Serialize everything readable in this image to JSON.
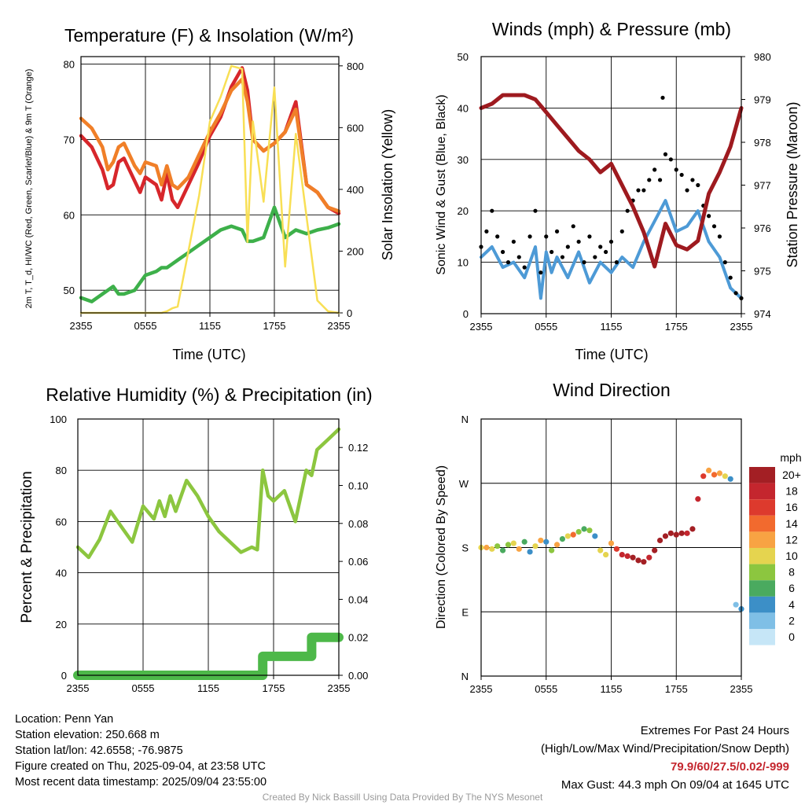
{
  "colors": {
    "red_temp": "#d7262b",
    "orange_temp": "#f07f28",
    "green_dew": "#3db04a",
    "yellow_solar": "#f8df55",
    "blue_wind": "#4d9ad6",
    "black_gust": "#000000",
    "maroon_pressure": "#9e1a1f",
    "green_rh": "#8cc63f",
    "green_precip": "#4db849"
  },
  "chart_data": [
    {
      "type": "line",
      "title": "Temperature (F) & Insolation (W/m²)",
      "xlabel": "Time (UTC)",
      "ylabel_left": "2m T, T_d, HI/WC (Red, Green, Scarlet/Blue) & 9m T (Orange)",
      "ylabel_right": "Solar Insolation (Yellow)",
      "x_ticks": [
        "2355",
        "0555",
        "1155",
        "1755",
        "2355"
      ],
      "ylim": [
        47,
        81
      ],
      "y_ticks": [
        50,
        60,
        70,
        80
      ],
      "ylim_right": [
        0,
        830
      ],
      "y_ticks_right": [
        0,
        200,
        400,
        600,
        800
      ],
      "grid": true,
      "x_hours": [
        0,
        1,
        2,
        2.5,
        3,
        3.5,
        4,
        5,
        5.5,
        6,
        7,
        7.5,
        8,
        8.5,
        9,
        10,
        11,
        12,
        13,
        14,
        15,
        15.5,
        16,
        17,
        18,
        19,
        20,
        21,
        22,
        23,
        24
      ],
      "series": [
        {
          "name": "2m T",
          "color_key": "red_temp",
          "values": [
            70.5,
            69,
            66,
            63.5,
            64,
            67,
            67.5,
            64.5,
            63,
            65,
            64,
            62,
            65.5,
            62,
            61,
            64,
            67,
            70.5,
            73,
            77,
            79.5,
            76.5,
            70,
            68.5,
            69.5,
            71,
            75,
            64,
            63,
            61,
            60.2
          ]
        },
        {
          "name": "9m T",
          "color_key": "orange_temp",
          "values": [
            72.8,
            71.5,
            69,
            66,
            67,
            69,
            69.5,
            66.5,
            65.5,
            67,
            66.5,
            64,
            66.5,
            64,
            63.5,
            65,
            68,
            71,
            73.5,
            76.5,
            78,
            75,
            70,
            68.5,
            69.5,
            71,
            74,
            64,
            63,
            61,
            60.5
          ]
        },
        {
          "name": "2m Td",
          "color_key": "green_dew",
          "values": [
            49,
            48.5,
            49.5,
            50,
            50.5,
            49.5,
            49.5,
            50,
            51,
            52,
            52.5,
            53,
            53,
            53.5,
            54,
            55,
            56,
            57,
            58,
            58.5,
            58,
            56.5,
            56.5,
            57,
            61,
            57,
            58,
            57.5,
            58,
            58.3,
            58.8
          ]
        },
        {
          "name": "Solar",
          "axis": "right",
          "color_key": "yellow_solar",
          "values": [
            0,
            0,
            0,
            0,
            0,
            0,
            0,
            0,
            0,
            0,
            0,
            0,
            5,
            15,
            20,
            200,
            380,
            620,
            700,
            800,
            790,
            230,
            620,
            360,
            730,
            150,
            580,
            310,
            40,
            5,
            0
          ]
        }
      ]
    },
    {
      "type": "line",
      "title": "Winds (mph) & Pressure (mb)",
      "xlabel": "Time (UTC)",
      "ylabel_left": "Sonic Wind & Gust (Blue, Black)",
      "ylabel_right": "Station Pressure (Maroon)",
      "x_ticks": [
        "2355",
        "0555",
        "1155",
        "1755",
        "2355"
      ],
      "ylim": [
        0,
        50
      ],
      "y_ticks": [
        0,
        10,
        20,
        30,
        40,
        50
      ],
      "ylim_right": [
        974,
        980
      ],
      "y_ticks_right": [
        974,
        975,
        976,
        977,
        978,
        979,
        980
      ],
      "grid": true,
      "series": [
        {
          "name": "Sonic Wind",
          "color_key": "blue_wind",
          "x_hours": [
            0,
            1,
            2,
            3,
            4,
            5,
            5.5,
            6,
            6.5,
            7,
            8,
            9,
            10,
            11,
            12,
            13,
            14,
            15,
            16,
            17,
            18,
            19,
            20,
            21,
            22,
            23,
            24
          ],
          "values": [
            11,
            13,
            9,
            10,
            7,
            13,
            3,
            12,
            8,
            11,
            7,
            12,
            6,
            10,
            8,
            11,
            9,
            14,
            18,
            22,
            16,
            17,
            20,
            14,
            11,
            5,
            3
          ]
        },
        {
          "name": "Gust",
          "color_key": "black_gust",
          "x_hours": [
            0,
            0.5,
            1,
            1.5,
            2,
            2.5,
            3,
            3.5,
            4,
            4.5,
            5,
            5.5,
            6,
            6.5,
            7,
            7.5,
            8,
            8.5,
            9,
            9.5,
            10,
            10.5,
            11,
            11.5,
            12,
            12.5,
            13,
            13.5,
            14,
            14.5,
            15,
            15.5,
            16,
            16.5,
            16.75,
            17,
            17.5,
            18,
            18.5,
            19,
            19.5,
            20,
            20.5,
            21,
            21.5,
            22,
            22.5,
            23,
            23.5,
            24
          ],
          "values": [
            13,
            16,
            20,
            15,
            12,
            10,
            14,
            11,
            9,
            15,
            20,
            8,
            15,
            12,
            16,
            11,
            13,
            17,
            14,
            10,
            15,
            11,
            13,
            12,
            14,
            10,
            16,
            20,
            22,
            24,
            24,
            26,
            28,
            26,
            42,
            31,
            30,
            28,
            27,
            24,
            26,
            25,
            21,
            19,
            17,
            15,
            10,
            7,
            4,
            3
          ]
        },
        {
          "name": "Station Pressure",
          "axis": "right",
          "color_key": "maroon_pressure",
          "x_hours": [
            0,
            1,
            2,
            3,
            4,
            5,
            6,
            7,
            8,
            9,
            10,
            11,
            12,
            13,
            14,
            15,
            16,
            17,
            18,
            19,
            20,
            21,
            22,
            23,
            24
          ],
          "values": [
            978.8,
            978.9,
            979.1,
            979.1,
            979.1,
            979.0,
            978.7,
            978.4,
            978.1,
            977.8,
            977.6,
            977.3,
            977.5,
            977.0,
            976.5,
            975.9,
            975.1,
            976.1,
            975.6,
            975.5,
            975.7,
            976.8,
            977.3,
            977.9,
            978.8
          ]
        }
      ]
    },
    {
      "type": "line",
      "title": "Relative Humidity (%) & Precipitation (in)",
      "xlabel": "",
      "ylabel_left": "Percent & Precipitation",
      "x_ticks": [
        "2355",
        "0555",
        "1155",
        "1755",
        "2355"
      ],
      "ylim": [
        0,
        100
      ],
      "y_ticks": [
        0,
        20,
        40,
        60,
        80,
        100
      ],
      "ylim_right": [
        0,
        0.135
      ],
      "y_ticks_right": [
        "0.00",
        "0.02",
        "0.04",
        "0.06",
        "0.08",
        "0.10",
        "0.12"
      ],
      "grid": true,
      "series": [
        {
          "name": "RH",
          "color_key": "green_rh",
          "x_hours": [
            0,
            1,
            2,
            3,
            4,
            5,
            6,
            7,
            7.5,
            8,
            8.5,
            9,
            10,
            11,
            12,
            13,
            14,
            15,
            16,
            16.5,
            17,
            17.5,
            18,
            19,
            20,
            21,
            21.5,
            22,
            23,
            24
          ],
          "values": [
            50,
            46,
            53,
            64,
            58,
            52,
            66,
            61,
            68,
            62,
            70,
            64,
            76,
            70,
            62,
            56,
            52,
            48,
            50,
            49,
            80,
            70,
            68,
            72,
            60,
            80,
            78,
            88,
            92,
            96
          ]
        },
        {
          "name": "Precipitation",
          "axis": "right",
          "color_key": "green_precip",
          "x_hours": [
            0,
            17,
            17,
            21.5,
            21.5,
            24
          ],
          "values": [
            0,
            0,
            0.01,
            0.01,
            0.02,
            0.02
          ]
        }
      ]
    },
    {
      "type": "scatter",
      "title": "Wind Direction",
      "ylabel_left": "Direction (Colored By Speed)",
      "x_ticks": [
        "2355",
        "0555",
        "1155",
        "1755",
        "2355"
      ],
      "y_ticks": [
        "N",
        "E",
        "S",
        "W",
        "N"
      ],
      "ylim": [
        0,
        360
      ],
      "grid": true,
      "legend_title": "mph",
      "legend_labels": [
        "20+",
        "18",
        "16",
        "14",
        "12",
        "10",
        "8",
        "6",
        "4",
        "2",
        "0"
      ],
      "legend_colors": [
        "#a31f24",
        "#c4262e",
        "#dd3a2d",
        "#f26a2e",
        "#f8a343",
        "#e5d44f",
        "#8cc63f",
        "#4aaa5f",
        "#3c8fc7",
        "#7fbfe6",
        "#c6e6f7"
      ],
      "x_hours": [
        0,
        0.5,
        1,
        1.5,
        2,
        2.5,
        3,
        3.5,
        4,
        4.5,
        5,
        5.5,
        6,
        6.5,
        7,
        7.5,
        8,
        8.5,
        9,
        9.5,
        10,
        10.5,
        11,
        11.5,
        12,
        12.5,
        13,
        13.5,
        14,
        14.5,
        15,
        15.5,
        16,
        16.5,
        17,
        17.5,
        18,
        18.5,
        19,
        19.5,
        20,
        20.5,
        21,
        21.5,
        22,
        22.5,
        23,
        23.5,
        24
      ],
      "directions": [
        180,
        180,
        178,
        182,
        176,
        184,
        186,
        178,
        188,
        174,
        182,
        190,
        188,
        176,
        184,
        192,
        196,
        198,
        202,
        206,
        204,
        196,
        176,
        170,
        186,
        178,
        170,
        168,
        166,
        162,
        160,
        166,
        176,
        190,
        196,
        200,
        198,
        200,
        200,
        206,
        248,
        280,
        288,
        282,
        284,
        280,
        276,
        100,
        94
      ],
      "speeds": [
        10,
        12,
        10,
        8,
        6,
        7,
        9,
        11,
        6,
        4,
        9,
        12,
        3,
        8,
        11,
        6,
        9,
        14,
        8,
        6,
        7,
        4,
        9,
        10,
        12,
        15,
        17,
        18,
        20,
        20,
        19,
        17,
        20,
        19,
        20,
        20,
        19,
        19,
        18,
        20,
        17,
        15,
        12,
        14,
        11,
        10,
        4,
        2,
        3
      ]
    }
  ],
  "info_left": {
    "location": "Location: Penn Yan",
    "elevation": "Station elevation: 250.668 m",
    "latlon": "Station lat/lon: 42.6558; -76.9875",
    "created": "Figure created on Thu, 2025-09-04, at 23:58 UTC",
    "recent": "Most recent data timestamp: 2025/09/04 23:55:00"
  },
  "info_right": {
    "title": "Extremes For Past 24 Hours",
    "subtitle": "(High/Low/Max Wind/Precipitation/Snow Depth)",
    "values": "79.9/60/27.5/0.02/-999",
    "gust": "Max Gust: 44.3 mph On 09/04 at 1645 UTC"
  },
  "credit": "Created By Nick Bassill Using Data Provided By The NYS Mesonet"
}
